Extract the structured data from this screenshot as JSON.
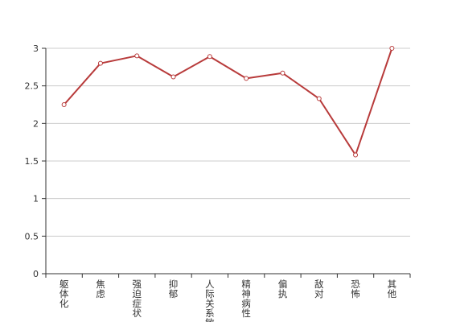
{
  "chart_data": {
    "type": "line",
    "categories": [
      "躯体化",
      "焦虑",
      "强迫症状",
      "抑郁",
      "人际关系敏感",
      "精神病性",
      "偏执",
      "敌对",
      "恐怖",
      "其他"
    ],
    "series": [
      {
        "values": [
          2.25,
          2.8,
          2.9,
          2.62,
          2.89,
          2.6,
          2.67,
          2.33,
          1.58,
          3.0
        ]
      }
    ],
    "y_ticks": [
      "0",
      "0.5",
      "1",
      "1.5",
      "2",
      "2.5",
      "3"
    ],
    "ylim": [
      0,
      3
    ],
    "grid": true,
    "legend": "none",
    "line_color": "#b83b3b",
    "grid_color": "#cccccc",
    "axis_color": "#333333"
  }
}
